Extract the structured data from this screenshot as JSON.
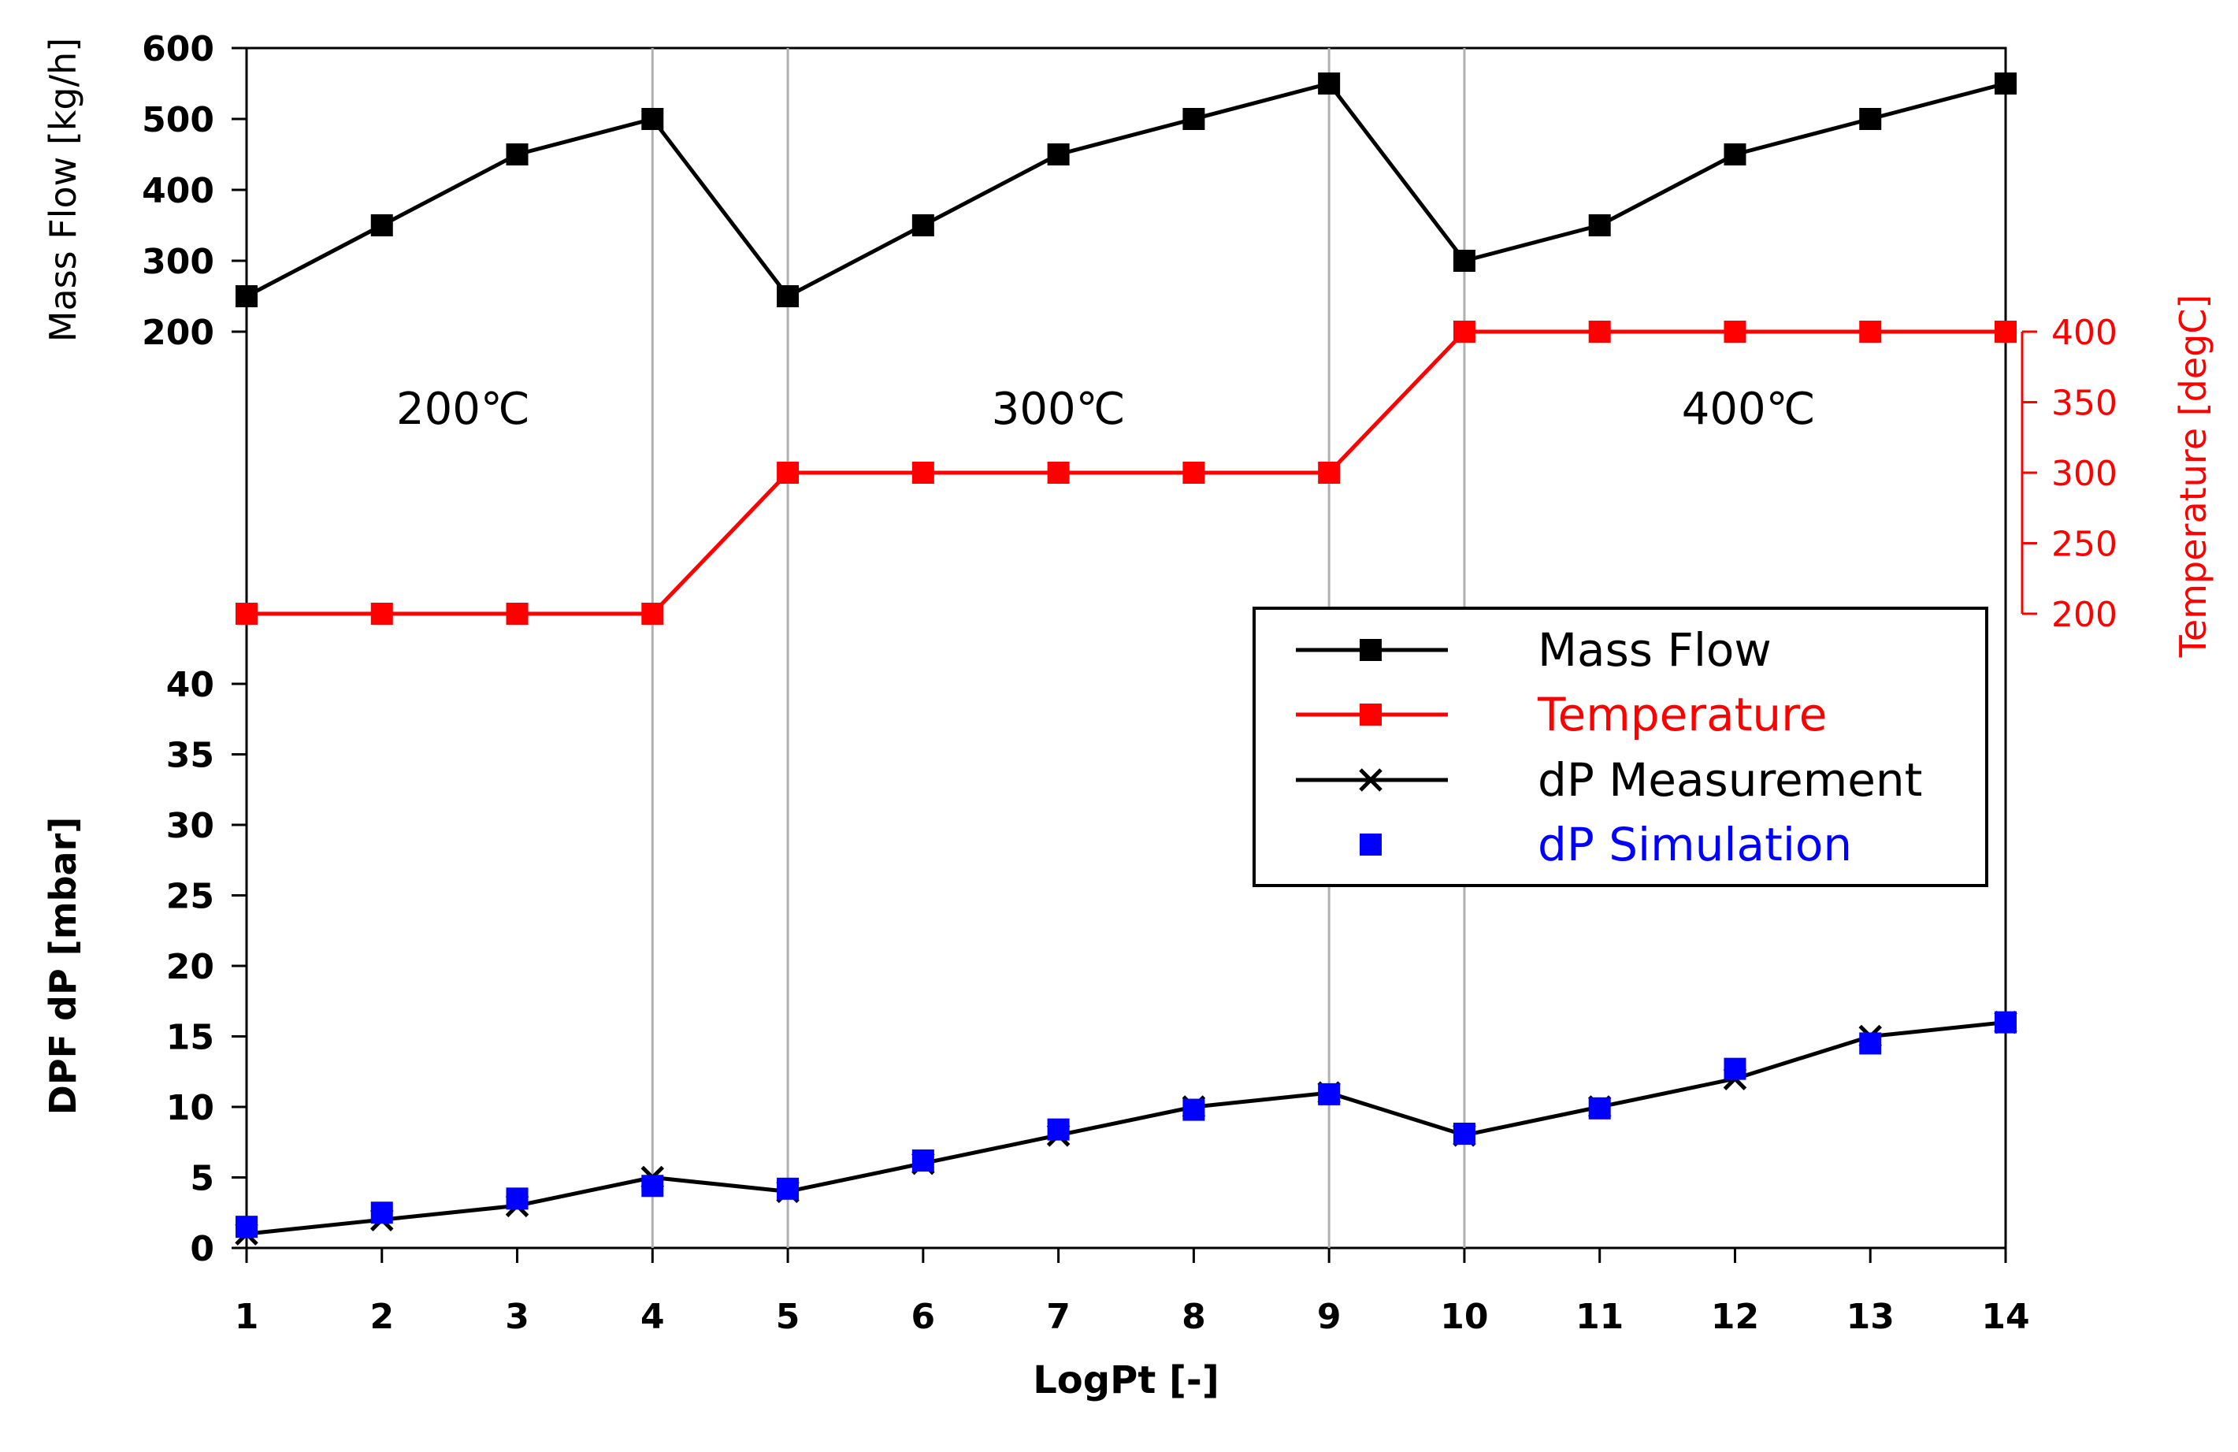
{
  "chart_data": {
    "type": "line",
    "x": [
      1,
      2,
      3,
      4,
      5,
      6,
      7,
      8,
      9,
      10,
      11,
      12,
      13,
      14
    ],
    "xlabel": "LogPt [-]",
    "xlim": [
      1,
      14
    ],
    "xticks": [
      "1",
      "2",
      "3",
      "4",
      "5",
      "6",
      "7",
      "8",
      "9",
      "10",
      "11",
      "12",
      "13",
      "14"
    ],
    "vertical_gridlines_at": [
      4,
      5,
      9,
      10
    ],
    "panels": {
      "mass_flow": {
        "ylabel": "Mass Flow [kg/h]",
        "ylim": [
          200,
          600
        ],
        "yticks": [
          "200",
          "300",
          "400",
          "500",
          "600"
        ]
      },
      "temperature": {
        "ylabel": "Temperature [degC]",
        "ylim": [
          200,
          400
        ],
        "yticks": [
          "200",
          "250",
          "300",
          "350",
          "400"
        ]
      },
      "dp": {
        "ylabel": "DPF dP [mbar]",
        "ylim": [
          0,
          40
        ],
        "yticks": [
          "0",
          "5",
          "10",
          "15",
          "20",
          "25",
          "30",
          "35",
          "40"
        ]
      }
    },
    "series": [
      {
        "name": "Mass Flow",
        "axis": "mass_flow",
        "color": "#000000",
        "marker": "square",
        "line": true,
        "values": [
          250,
          350,
          450,
          500,
          250,
          350,
          450,
          500,
          550,
          300,
          350,
          450,
          500,
          550
        ]
      },
      {
        "name": "Temperature",
        "axis": "temperature",
        "color": "#ff0000",
        "marker": "square",
        "line": true,
        "values": [
          200,
          200,
          200,
          200,
          300,
          300,
          300,
          300,
          300,
          400,
          400,
          400,
          400,
          400
        ]
      },
      {
        "name": "dP Measurement",
        "axis": "dp",
        "color": "#000000",
        "marker": "x",
        "line": true,
        "values": [
          1,
          2,
          3,
          5,
          4,
          6,
          8,
          10,
          11,
          8,
          10,
          12,
          15,
          16
        ]
      },
      {
        "name": "dP Simulation",
        "axis": "dp",
        "color": "#0000ff",
        "marker": "square",
        "line": false,
        "values": [
          1.5,
          2.5,
          3.5,
          4.4,
          4.2,
          6.2,
          8.4,
          9.8,
          10.9,
          8.1,
          9.9,
          12.7,
          14.5,
          16
        ]
      }
    ],
    "annotations": [
      {
        "text": "200℃",
        "x": 2.6
      },
      {
        "text": "300℃",
        "x": 7.0
      },
      {
        "text": "400℃",
        "x": 12.1
      }
    ],
    "legend": {
      "placement": "center-right",
      "entries": [
        "Mass Flow",
        "Temperature",
        "dP Measurement",
        "dP Simulation"
      ]
    }
  }
}
